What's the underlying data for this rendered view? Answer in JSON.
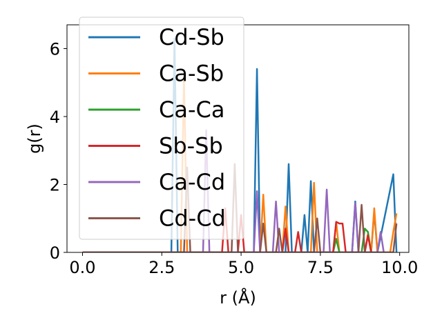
{
  "chart_data": {
    "type": "line",
    "title": "",
    "xlabel": "r (Å)",
    "ylabel": "g(r)",
    "xlim": [
      -0.49,
      10.29
    ],
    "ylim": [
      0,
      6.7
    ],
    "xticks": [
      0.0,
      2.5,
      5.0,
      7.5,
      10.0
    ],
    "xtick_labels": [
      "0.0",
      "2.5",
      "5.0",
      "7.5",
      "10.0"
    ],
    "yticks": [
      0,
      2,
      4,
      6
    ],
    "ytick_labels": [
      "0",
      "2",
      "4",
      "6"
    ],
    "grid": false,
    "legend_position": "upper-left",
    "series": [
      {
        "name": "Cd-Sb",
        "color": "#1f77b4",
        "points": [
          [
            0,
            0
          ],
          [
            2.8,
            0
          ],
          [
            2.9,
            6.3
          ],
          [
            3.0,
            0
          ],
          [
            5.4,
            0
          ],
          [
            5.5,
            5.4
          ],
          [
            5.6,
            0
          ],
          [
            6.4,
            0
          ],
          [
            6.5,
            2.6
          ],
          [
            6.6,
            0
          ],
          [
            6.9,
            0
          ],
          [
            7.0,
            1.1
          ],
          [
            7.1,
            0
          ],
          [
            7.2,
            2.1
          ],
          [
            7.3,
            0
          ],
          [
            8.5,
            0
          ],
          [
            8.6,
            1.5
          ],
          [
            8.7,
            0
          ],
          [
            9.1,
            0
          ],
          [
            9.2,
            1.2
          ],
          [
            9.3,
            0
          ],
          [
            9.8,
            2.3
          ],
          [
            9.9,
            0
          ]
        ]
      },
      {
        "name": "Ca-Sb",
        "color": "#ff7f0e",
        "points": [
          [
            0,
            0
          ],
          [
            3.1,
            0
          ],
          [
            3.2,
            5.2
          ],
          [
            3.3,
            0
          ],
          [
            5.6,
            0
          ],
          [
            5.7,
            1.7
          ],
          [
            5.8,
            0
          ],
          [
            6.3,
            0
          ],
          [
            6.4,
            1.35
          ],
          [
            6.5,
            0
          ],
          [
            7.2,
            0
          ],
          [
            7.3,
            2.05
          ],
          [
            7.4,
            0
          ],
          [
            7.9,
            0
          ],
          [
            8.0,
            0.9
          ],
          [
            8.1,
            0
          ],
          [
            8.9,
            0
          ],
          [
            9.0,
            0.55
          ],
          [
            9.1,
            0
          ],
          [
            9.2,
            1.3
          ],
          [
            9.3,
            0
          ],
          [
            9.7,
            0
          ],
          [
            9.8,
            0.6
          ],
          [
            9.9,
            1.15
          ]
        ]
      },
      {
        "name": "Ca-Ca",
        "color": "#2ca02c",
        "points": [
          [
            0,
            0
          ],
          [
            7.9,
            0
          ],
          [
            8.0,
            0.4
          ],
          [
            8.1,
            0
          ],
          [
            8.8,
            0
          ],
          [
            8.9,
            0.7
          ],
          [
            9.0,
            0.6
          ],
          [
            9.1,
            0
          ]
        ]
      },
      {
        "name": "Sb-Sb",
        "color": "#d62728",
        "points": [
          [
            0,
            0
          ],
          [
            4.4,
            0
          ],
          [
            4.5,
            1.3
          ],
          [
            4.6,
            0
          ],
          [
            4.9,
            0
          ],
          [
            5.0,
            1.1
          ],
          [
            5.1,
            0
          ],
          [
            6.3,
            0
          ],
          [
            6.4,
            0.7
          ],
          [
            6.5,
            0
          ],
          [
            6.7,
            0
          ],
          [
            6.8,
            0.6
          ],
          [
            6.9,
            0
          ],
          [
            7.9,
            0
          ],
          [
            8.0,
            0.9
          ],
          [
            8.1,
            0.85
          ],
          [
            8.2,
            0.85
          ],
          [
            8.3,
            0
          ],
          [
            8.9,
            0
          ],
          [
            9.0,
            0.5
          ],
          [
            9.1,
            0
          ]
        ]
      },
      {
        "name": "Ca-Cd",
        "color": "#9467bd",
        "points": [
          [
            0,
            0
          ],
          [
            3.8,
            0
          ],
          [
            3.9,
            3.6
          ],
          [
            4.0,
            0
          ],
          [
            5.4,
            0
          ],
          [
            5.5,
            1.8
          ],
          [
            5.6,
            0
          ],
          [
            6.0,
            0
          ],
          [
            6.1,
            1.5
          ],
          [
            6.2,
            0
          ],
          [
            7.6,
            0
          ],
          [
            7.7,
            1.85
          ],
          [
            7.8,
            0
          ],
          [
            8.5,
            0
          ],
          [
            8.6,
            1.45
          ],
          [
            8.7,
            0
          ],
          [
            9.3,
            0
          ],
          [
            9.4,
            0.6
          ],
          [
            9.5,
            0
          ]
        ]
      },
      {
        "name": "Cd-Cd",
        "color": "#8c564b",
        "points": [
          [
            0,
            0
          ],
          [
            3.2,
            0
          ],
          [
            3.3,
            2.5
          ],
          [
            3.4,
            0
          ],
          [
            4.7,
            0
          ],
          [
            4.8,
            2.6
          ],
          [
            4.9,
            0
          ],
          [
            5.6,
            0
          ],
          [
            5.7,
            0.85
          ],
          [
            5.8,
            0
          ],
          [
            6.1,
            0
          ],
          [
            6.2,
            0.7
          ],
          [
            6.3,
            0
          ],
          [
            7.3,
            0
          ],
          [
            7.4,
            1.0
          ],
          [
            7.5,
            0
          ],
          [
            8.7,
            0
          ],
          [
            8.8,
            1.4
          ],
          [
            8.9,
            0
          ],
          [
            9.8,
            0
          ],
          [
            9.9,
            0.85
          ]
        ]
      }
    ]
  }
}
